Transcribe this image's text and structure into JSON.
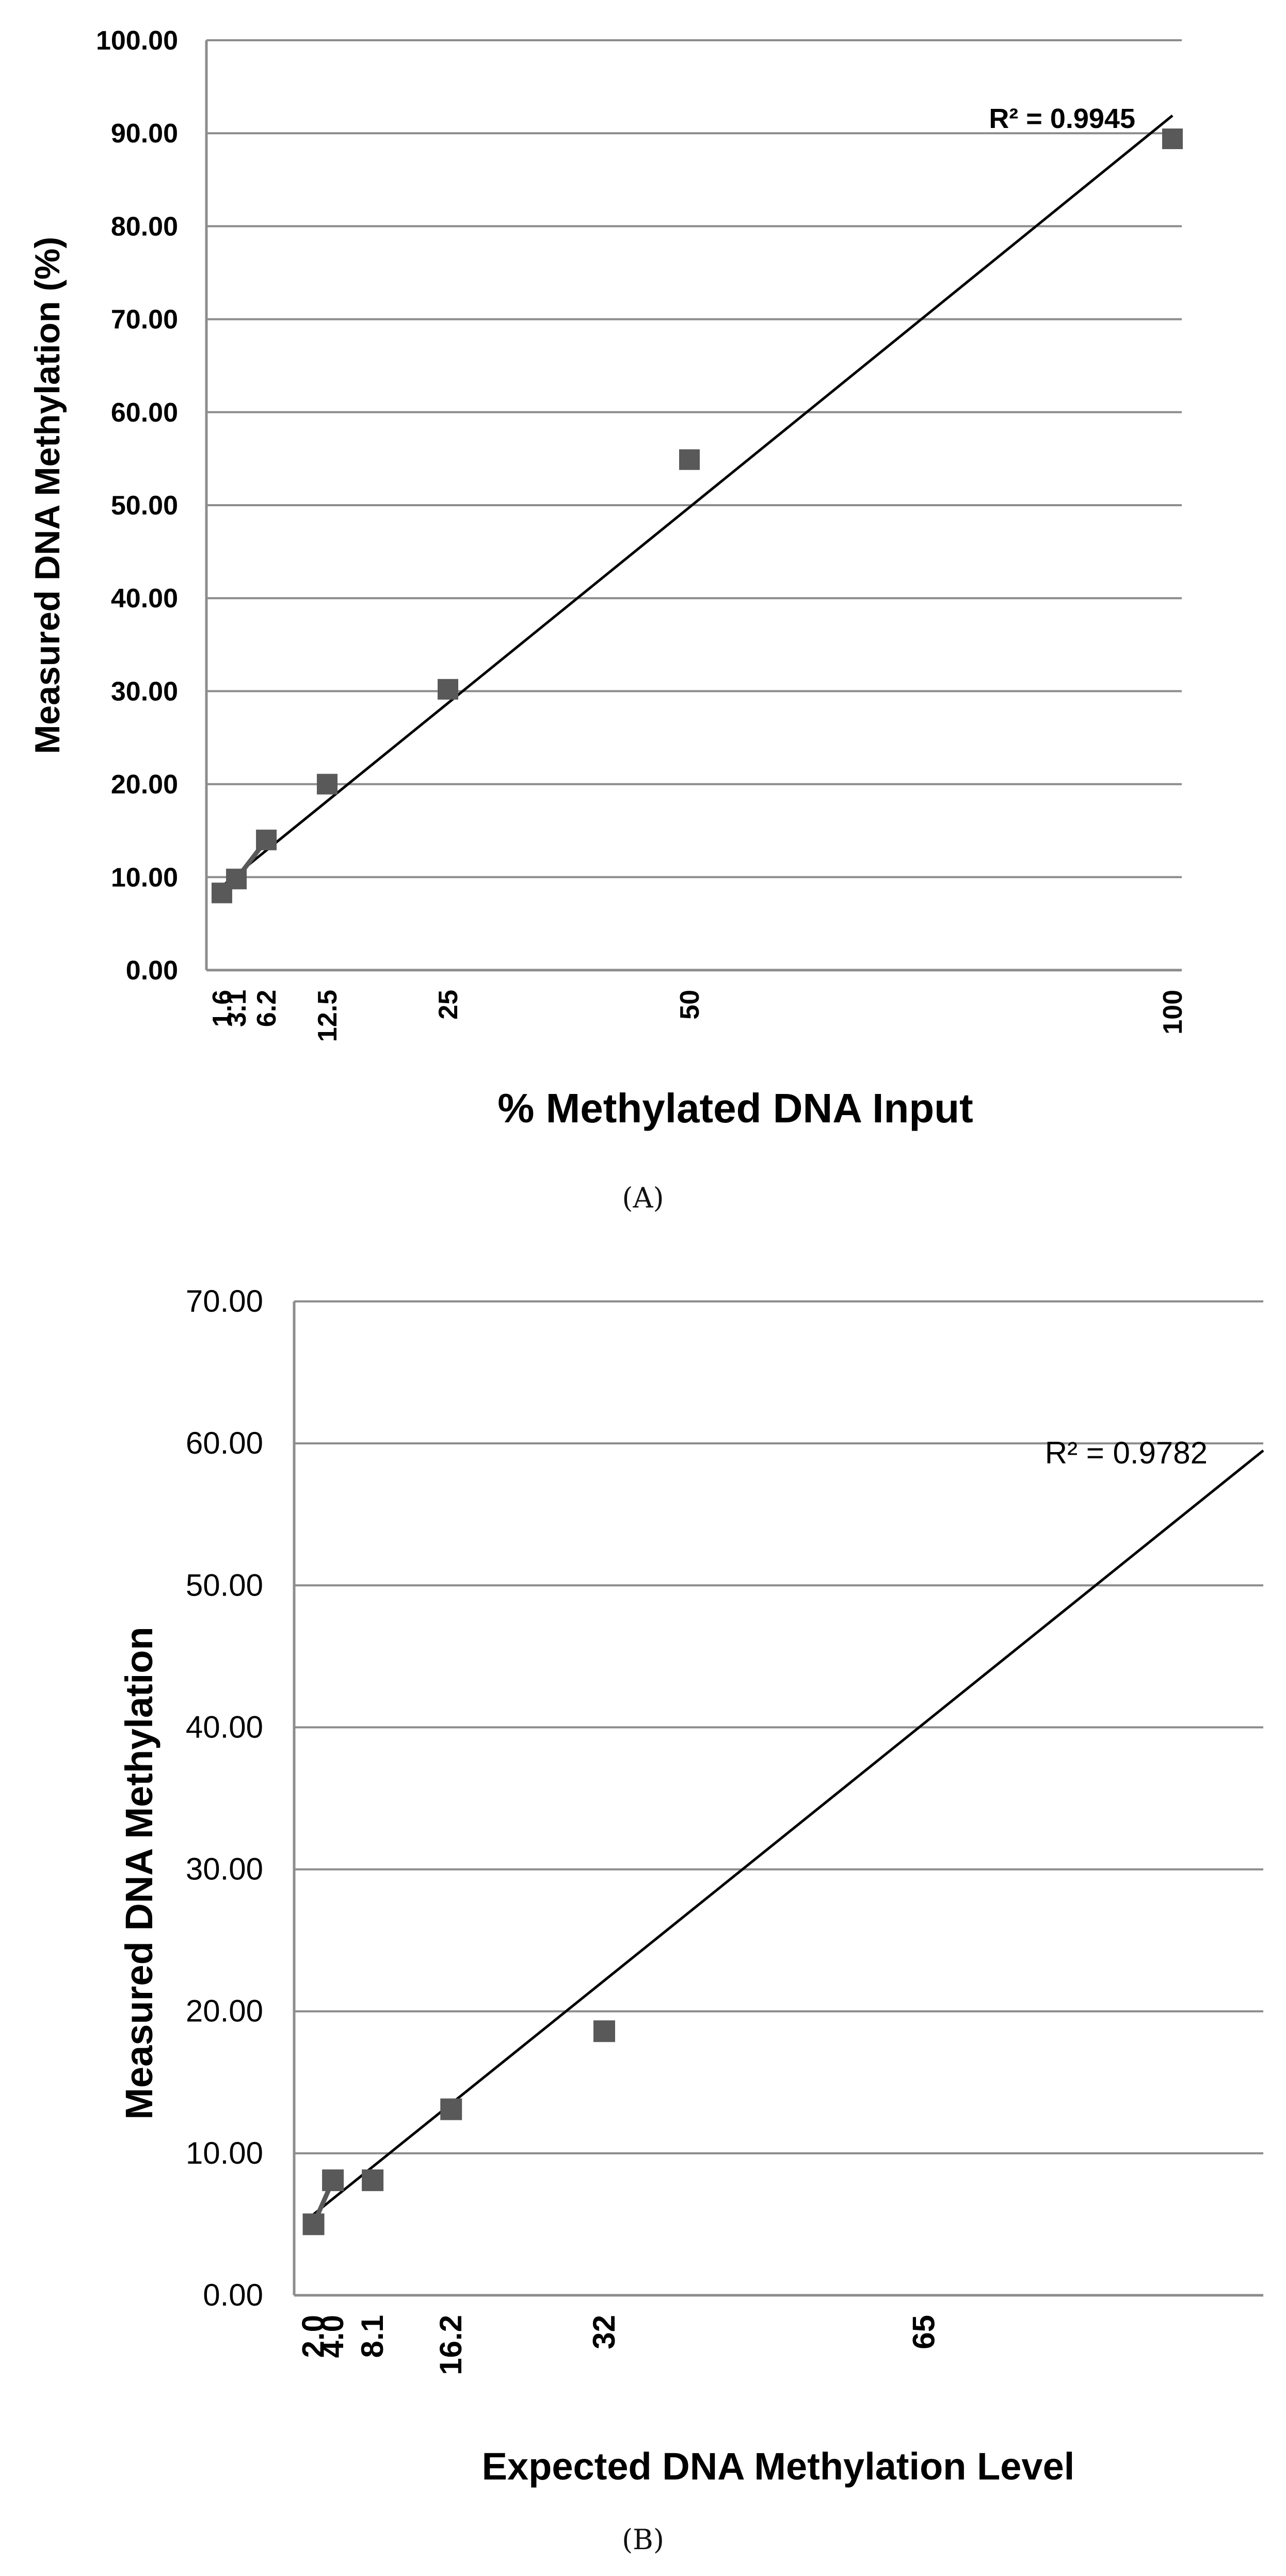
{
  "chart_data": [
    {
      "type": "scatter",
      "title": "",
      "xlabel": "% Methylated DNA Input",
      "ylabel": "Measured DNA Methylation (%)",
      "ylim": [
        0,
        100
      ],
      "xlim": [
        0,
        100
      ],
      "y_ticks": [
        "0.00",
        "10.00",
        "20.00",
        "30.00",
        "40.00",
        "50.00",
        "60.00",
        "70.00",
        "80.00",
        "90.00",
        "100.00"
      ],
      "x_ticks": [
        "1.6",
        "3.1",
        "6.2",
        "12.5",
        "25",
        "50",
        "100"
      ],
      "x_tick_values": [
        1.6,
        3.1,
        6.2,
        12.5,
        25,
        50,
        100
      ],
      "grid": true,
      "series": [
        {
          "x": [
            1.6,
            3.1,
            6.2,
            12.5,
            25,
            50,
            100
          ],
          "y": [
            8.3,
            9.8,
            14.0,
            20.0,
            30.2,
            54.9,
            89.4
          ],
          "marker": "square",
          "color": "#595959"
        }
      ],
      "trendline": {
        "x": [
          1.6,
          100
        ],
        "y": [
          9.0,
          91.9
        ],
        "color": "#000000"
      },
      "r_squared_label": "R² = 0.9945",
      "caption": "(A)"
    },
    {
      "type": "scatter",
      "title": "",
      "xlabel": "Expected DNA Methylation Level",
      "ylabel": "Measured DNA Methylation",
      "ylim": [
        0,
        70
      ],
      "xlim": [
        0,
        100
      ],
      "y_ticks": [
        "0.00",
        "10.00",
        "20.00",
        "30.00",
        "40.00",
        "50.00",
        "60.00",
        "70.00"
      ],
      "x_ticks": [
        "2.0",
        "4.0",
        "8.1",
        "16.2",
        "32",
        "65"
      ],
      "x_tick_values": [
        2.0,
        4.0,
        8.1,
        16.2,
        32,
        65
      ],
      "grid": true,
      "series": [
        {
          "x": [
            2.0,
            4.0,
            8.1,
            16.2,
            32
          ],
          "y": [
            5.0,
            8.1,
            8.1,
            13.1,
            18.6
          ],
          "marker": "square",
          "color": "#595959"
        }
      ],
      "trendline": {
        "x": [
          2.0,
          100
        ],
        "y": [
          5.7,
          59.5
        ],
        "color": "#000000"
      },
      "r_squared_label": "R² = 0.9782",
      "caption": "(B)"
    }
  ]
}
